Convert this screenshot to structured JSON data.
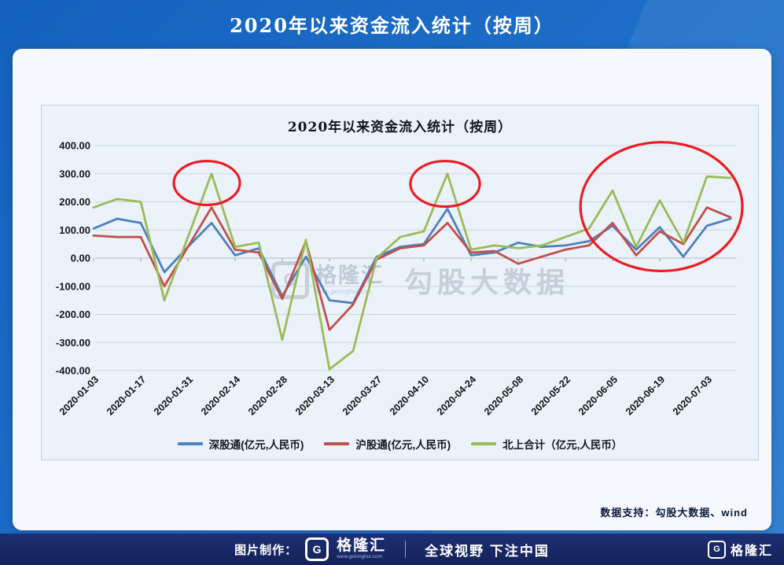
{
  "header": {
    "title": "2020年以来资金流入统计（按周）"
  },
  "panel_footer": {
    "support_text": "数据支持：勾股大数据、wind"
  },
  "watermark": {
    "logo_letter": "G",
    "brand": "格隆汇",
    "url": "www.gelonghui.com",
    "big_text": "勾股大数据"
  },
  "bottom_bar": {
    "made_by": "图片制作：",
    "logo_letter": "G",
    "brand": "格隆汇",
    "brand_url": "www.gelonghui.com",
    "slogan": "全球视野 下注中国",
    "right_logo_letter": "G",
    "right_brand": "格隆汇"
  },
  "chart_data": {
    "type": "line",
    "title": "2020年以来资金流入统计（按周）",
    "x": [
      "2020-01-03",
      "2020-01-10",
      "2020-01-17",
      "2020-01-24",
      "2020-01-31",
      "2020-02-07",
      "2020-02-14",
      "2020-02-21",
      "2020-02-28",
      "2020-03-06",
      "2020-03-13",
      "2020-03-20",
      "2020-03-27",
      "2020-04-03",
      "2020-04-10",
      "2020-04-17",
      "2020-04-24",
      "2020-05-01",
      "2020-05-08",
      "2020-05-15",
      "2020-05-22",
      "2020-05-29",
      "2020-06-05",
      "2020-06-12",
      "2020-06-19",
      "2020-06-26",
      "2020-07-03",
      "2020-07-10"
    ],
    "x_tick_label_indices": [
      0,
      2,
      4,
      6,
      8,
      10,
      12,
      14,
      16,
      18,
      20,
      22,
      24,
      26
    ],
    "ylim": [
      -400,
      400
    ],
    "ytick_step": 100,
    "ytick_labels": [
      "400.00",
      "300.00",
      "200.00",
      "100.00",
      "0.00",
      "-100.00",
      "-200.00",
      "-300.00",
      "-400.00"
    ],
    "grid": true,
    "legend_position": "bottom",
    "series": [
      {
        "name": "深股通(亿元,人民币)",
        "color": "#4f81bd",
        "values": [
          105,
          140,
          125,
          -50,
          40,
          125,
          10,
          35,
          -135,
          5,
          -150,
          -160,
          5,
          40,
          50,
          175,
          10,
          20,
          55,
          40,
          45,
          60,
          115,
          30,
          110,
          5,
          115,
          140
        ]
      },
      {
        "name": "沪股通(亿元,人民币)",
        "color": "#c0504d",
        "values": [
          80,
          75,
          75,
          -100,
          40,
          180,
          30,
          20,
          -145,
          60,
          -255,
          -165,
          -5,
          35,
          45,
          125,
          20,
          25,
          -20,
          5,
          30,
          45,
          125,
          10,
          95,
          50,
          180,
          145
        ]
      },
      {
        "name": "北上合计（亿元,人民币）",
        "color": "#9bbb59",
        "values": [
          180,
          210,
          200,
          -150,
          75,
          300,
          40,
          55,
          -290,
          65,
          -395,
          -330,
          0,
          75,
          95,
          300,
          30,
          45,
          35,
          45,
          75,
          105,
          240,
          40,
          205,
          55,
          290,
          285
        ]
      }
    ],
    "annotations": [
      {
        "shape": "ellipse",
        "x_index": 4.8,
        "y_value": 267,
        "rx_weeks": 1.4,
        "ry_value": 78,
        "color": "#ed1c24"
      },
      {
        "shape": "ellipse",
        "x_index": 14.9,
        "y_value": 264,
        "rx_weeks": 1.47,
        "ry_value": 81,
        "color": "#ed1c24"
      },
      {
        "shape": "ellipse",
        "x_index": 24.07,
        "y_value": 183,
        "rx_weeks": 3.43,
        "ry_value": 229,
        "color": "#ed1c24"
      }
    ]
  }
}
